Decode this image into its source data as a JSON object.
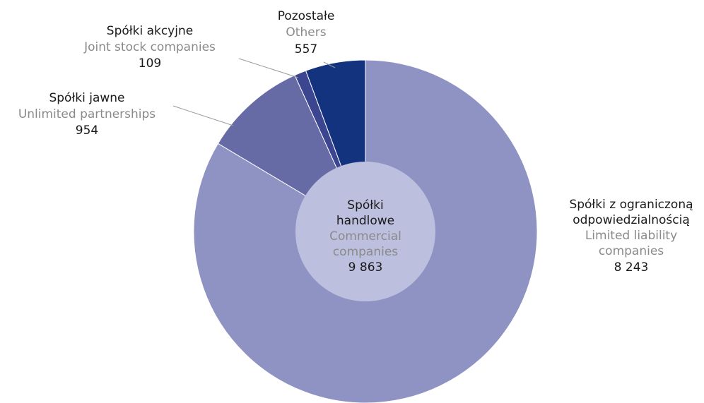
{
  "chart_data": {
    "type": "pie",
    "title": "",
    "center_label": {
      "pl_line1": "Spółki",
      "pl_line2": "handlowe",
      "en_line1": "Commercial",
      "en_line2": "companies",
      "value": "9 863"
    },
    "slices": [
      {
        "pl_lines": [
          "Spółki z ograniczoną",
          "odpowiedzialnością"
        ],
        "en_lines": [
          "Limited liability",
          "companies"
        ],
        "value": 8243,
        "value_label": "8 243",
        "color": "#8e93c3"
      },
      {
        "pl_lines": [
          "Spółki jawne"
        ],
        "en_lines": [
          "Unlimited partnerships"
        ],
        "value": 954,
        "value_label": "954",
        "color": "#666ba6"
      },
      {
        "pl_lines": [
          "Spółki akcyjne"
        ],
        "en_lines": [
          "Joint stock companies"
        ],
        "value": 109,
        "value_label": "109",
        "color": "#3b4590"
      },
      {
        "pl_lines": [
          "Pozostałe"
        ],
        "en_lines": [
          "Others"
        ],
        "value": 557,
        "value_label": "557",
        "color": "#14337f"
      }
    ],
    "center_color": "#bcbfde"
  }
}
